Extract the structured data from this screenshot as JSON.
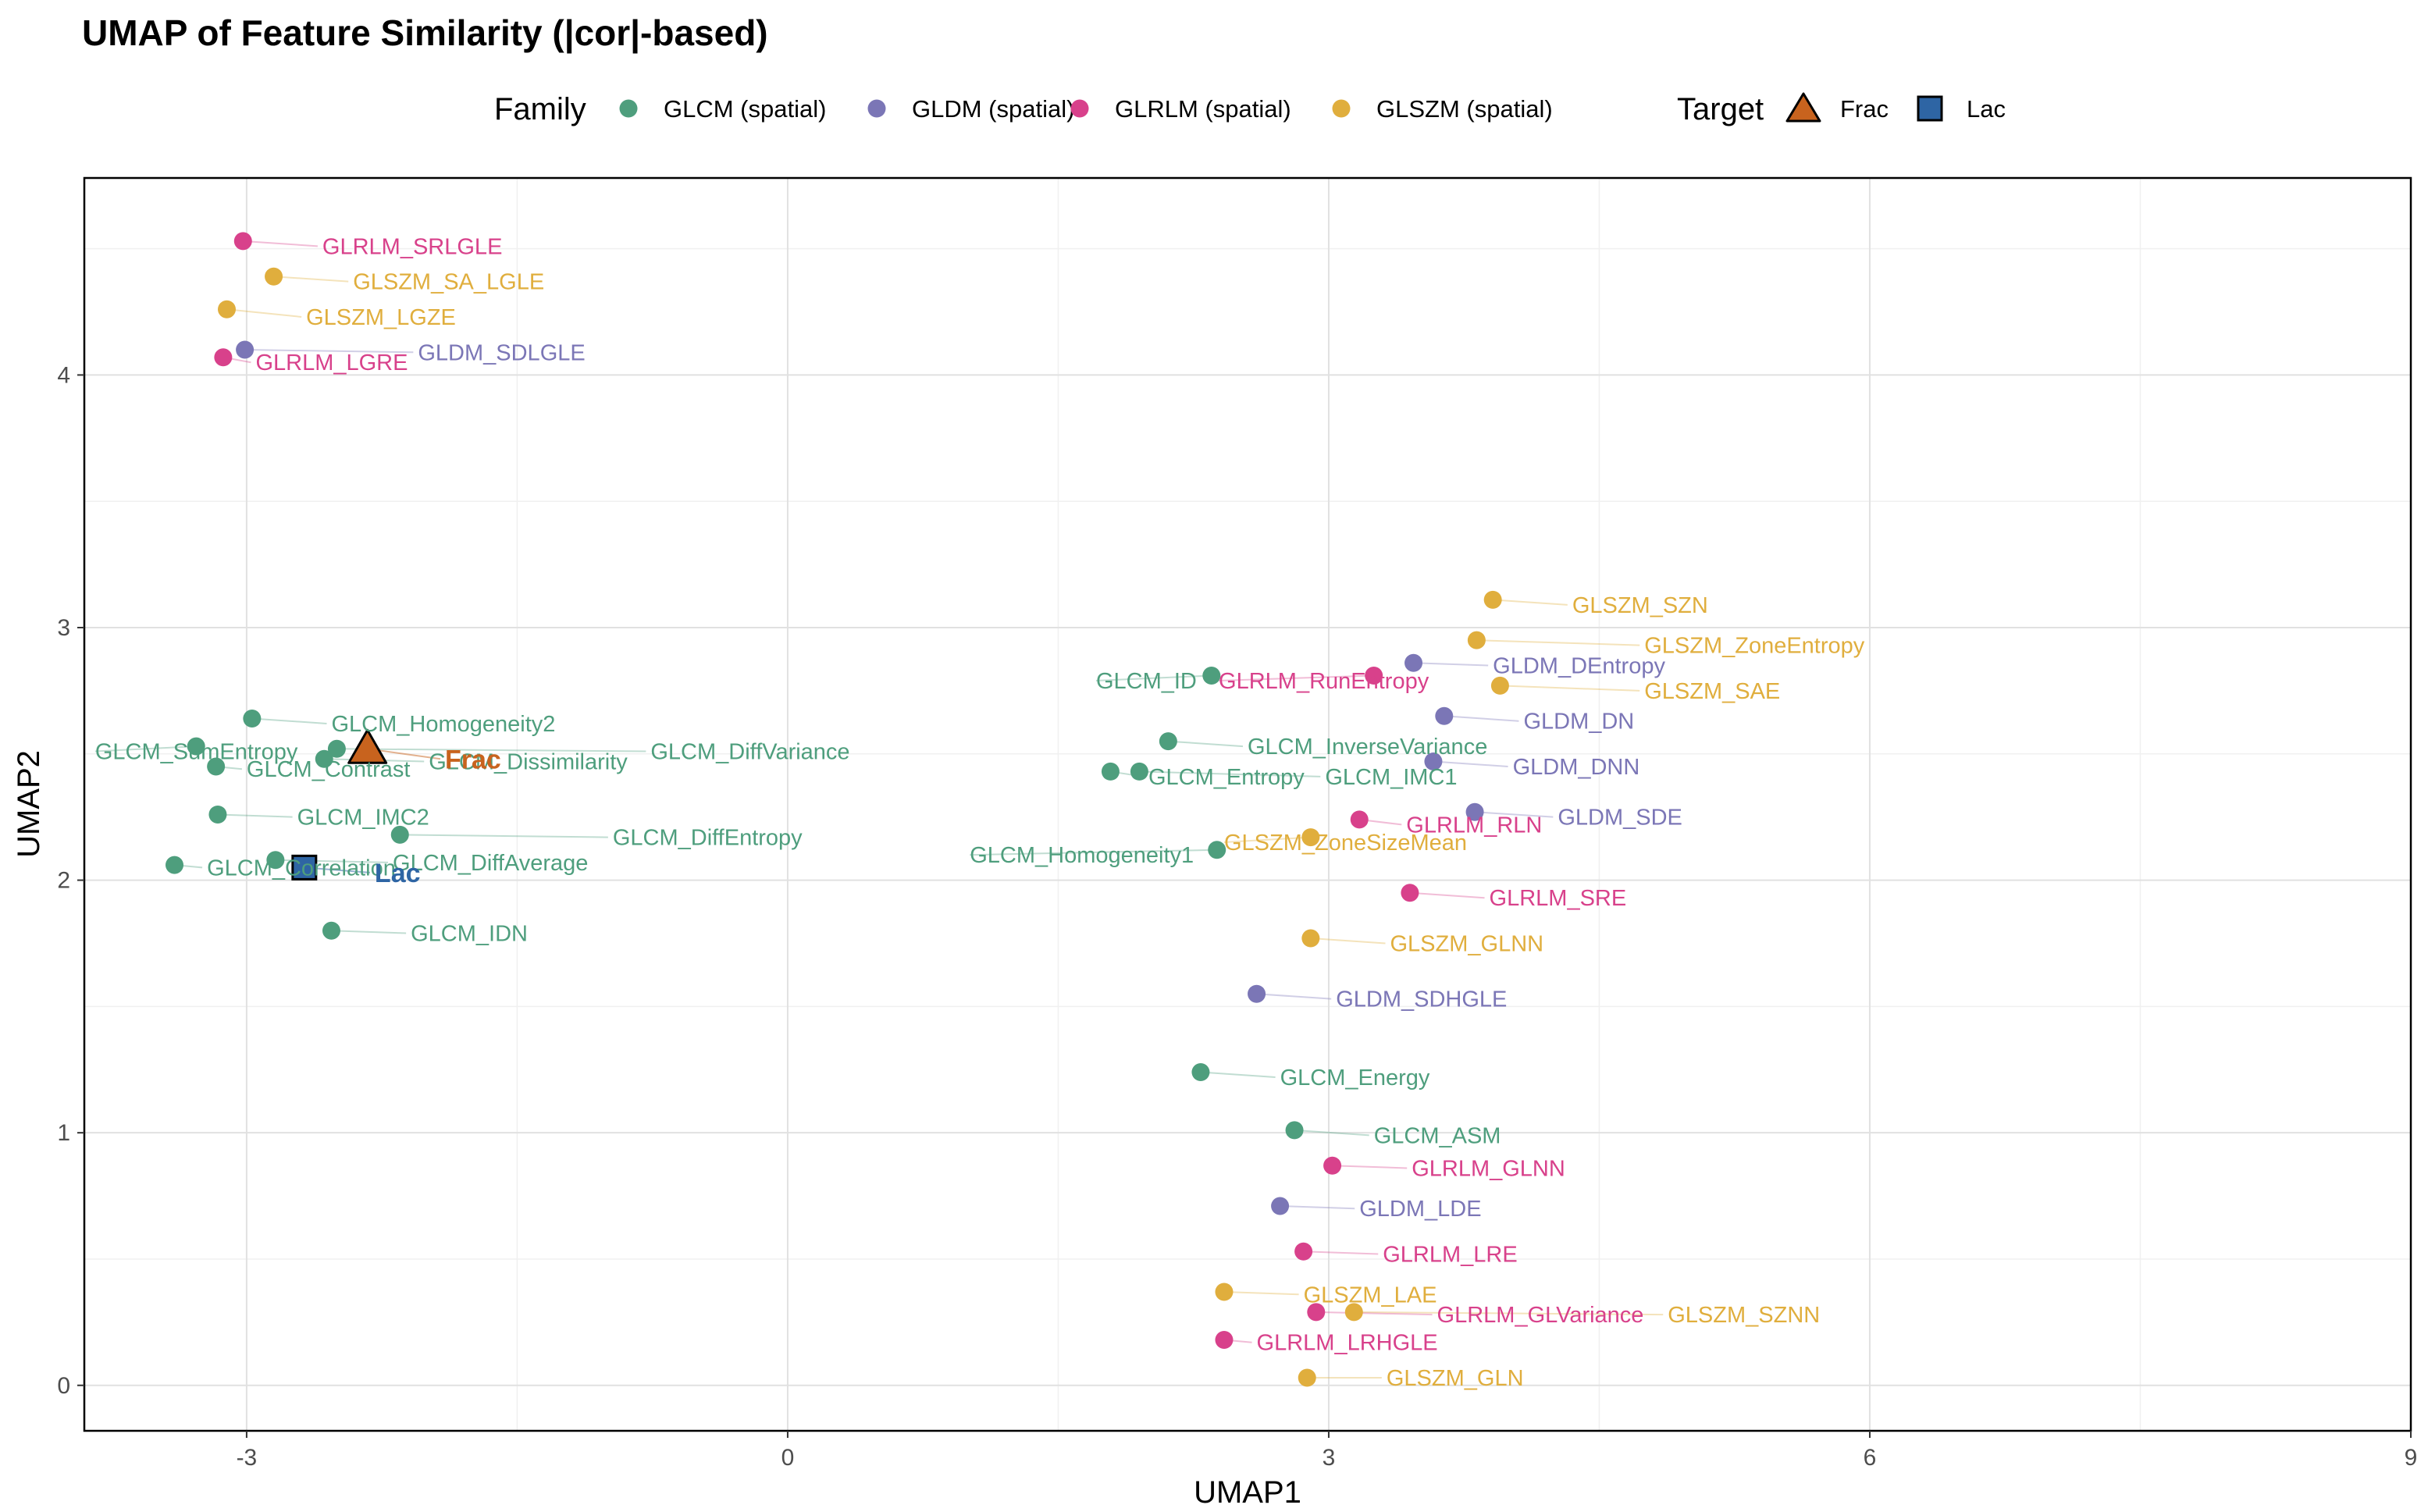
{
  "chart_data": {
    "type": "scatter",
    "title": "UMAP of Feature Similarity (|cor|-based)",
    "xlabel": "UMAP1",
    "ylabel": "UMAP2",
    "xlim": [
      -3.9,
      9.0
    ],
    "ylim": [
      -0.18,
      4.78
    ],
    "xticks": [
      -3,
      0,
      3,
      6,
      9
    ],
    "yticks": [
      0,
      1,
      2,
      3,
      4
    ],
    "grid": true,
    "legend_position": "top",
    "legend": {
      "family_title": "Family",
      "target_title": "Target",
      "families": [
        {
          "key": "GLCM",
          "label": "GLCM (spatial)",
          "color": "#4e9e7d"
        },
        {
          "key": "GLDM",
          "label": "GLDM (spatial)",
          "color": "#7b76b6"
        },
        {
          "key": "GLRLM",
          "label": "GLRLM (spatial)",
          "color": "#d8418b"
        },
        {
          "key": "GLSZM",
          "label": "GLSZM (spatial)",
          "color": "#e0ae3d"
        }
      ],
      "targets": [
        {
          "label": "Frac",
          "shape": "triangle",
          "color": "#c8631e"
        },
        {
          "label": "Lac",
          "shape": "square",
          "color": "#2e65a4"
        }
      ]
    },
    "targets": [
      {
        "label": "Frac",
        "x": -2.33,
        "y": 2.52,
        "lx": -1.9,
        "ly": 2.48,
        "color": "#c8631e",
        "shape": "triangle"
      },
      {
        "label": "Lac",
        "x": -2.68,
        "y": 2.05,
        "lx": -2.29,
        "ly": 2.03,
        "color": "#2e65a4",
        "shape": "square"
      }
    ],
    "points": [
      {
        "label": "GLRLM_SRLGLE",
        "family": "GLRLM",
        "x": -3.02,
        "y": 4.53,
        "lx": -2.58,
        "ly": 4.51
      },
      {
        "label": "GLSZM_SA_LGLE",
        "family": "GLSZM",
        "x": -2.85,
        "y": 4.39,
        "lx": -2.41,
        "ly": 4.37
      },
      {
        "label": "GLSZM_LGZE",
        "family": "GLSZM",
        "x": -3.11,
        "y": 4.26,
        "lx": -2.67,
        "ly": 4.23
      },
      {
        "label": "GLDM_SDLGLE",
        "family": "GLDM",
        "x": -3.01,
        "y": 4.1,
        "lx": -2.05,
        "ly": 4.09
      },
      {
        "label": "GLRLM_LGRE",
        "family": "GLRLM",
        "x": -3.13,
        "y": 4.07,
        "lx": -2.95,
        "ly": 4.05
      },
      {
        "label": "GLCM_Homogeneity2",
        "family": "GLCM",
        "x": -2.97,
        "y": 2.64,
        "lx": -2.53,
        "ly": 2.62
      },
      {
        "label": "GLCM_SumEntropy",
        "family": "GLCM",
        "x": -3.28,
        "y": 2.53,
        "lx": -3.84,
        "ly": 2.51
      },
      {
        "label": "GLCM_DiffVariance",
        "family": "GLCM",
        "x": -2.5,
        "y": 2.52,
        "lx": -0.76,
        "ly": 2.51
      },
      {
        "label": "GLCM_Dissimilarity",
        "family": "GLCM",
        "x": -2.57,
        "y": 2.48,
        "lx": -1.99,
        "ly": 2.47
      },
      {
        "label": "GLCM_Contrast",
        "family": "GLCM",
        "x": -3.17,
        "y": 2.45,
        "lx": -3.0,
        "ly": 2.44
      },
      {
        "label": "GLCM_IMC2",
        "family": "GLCM",
        "x": -3.16,
        "y": 2.26,
        "lx": -2.72,
        "ly": 2.25
      },
      {
        "label": "GLCM_DiffEntropy",
        "family": "GLCM",
        "x": -2.15,
        "y": 2.18,
        "lx": -0.97,
        "ly": 2.17
      },
      {
        "label": "GLCM_DiffAverage",
        "family": "GLCM",
        "x": -2.84,
        "y": 2.08,
        "lx": -2.19,
        "ly": 2.07
      },
      {
        "label": "GLCM_Correlation",
        "family": "GLCM",
        "x": -3.4,
        "y": 2.06,
        "lx": -3.22,
        "ly": 2.05
      },
      {
        "label": "GLCM_IDN",
        "family": "GLCM",
        "x": -2.53,
        "y": 1.8,
        "lx": -2.09,
        "ly": 1.79
      },
      {
        "label": "GLSZM_SZN",
        "family": "GLSZM",
        "x": 3.91,
        "y": 3.11,
        "lx": 4.35,
        "ly": 3.09
      },
      {
        "label": "GLSZM_ZoneEntropy",
        "family": "GLSZM",
        "x": 3.82,
        "y": 2.95,
        "lx": 4.75,
        "ly": 2.93
      },
      {
        "label": "GLDM_DEntropy",
        "family": "GLDM",
        "x": 3.47,
        "y": 2.86,
        "lx": 3.91,
        "ly": 2.85
      },
      {
        "label": "GLRLM_RunEntropy",
        "family": "GLRLM",
        "x": 3.25,
        "y": 2.81,
        "lx": 2.39,
        "ly": 2.79
      },
      {
        "label": "GLCM_ID",
        "family": "GLCM",
        "x": 2.35,
        "y": 2.81,
        "lx": 1.71,
        "ly": 2.79
      },
      {
        "label": "GLSZM_SAE",
        "family": "GLSZM",
        "x": 3.95,
        "y": 2.77,
        "lx": 4.75,
        "ly": 2.75
      },
      {
        "label": "GLDM_DN",
        "family": "GLDM",
        "x": 3.64,
        "y": 2.65,
        "lx": 4.08,
        "ly": 2.63
      },
      {
        "label": "GLCM_InverseVariance",
        "family": "GLCM",
        "x": 2.11,
        "y": 2.55,
        "lx": 2.55,
        "ly": 2.53
      },
      {
        "label": "GLDM_DNN",
        "family": "GLDM",
        "x": 3.58,
        "y": 2.47,
        "lx": 4.02,
        "ly": 2.45
      },
      {
        "label": "GLCM_IMC1",
        "family": "GLCM",
        "x": 1.95,
        "y": 2.43,
        "lx": 2.98,
        "ly": 2.41
      },
      {
        "label": "GLCM_Entropy",
        "family": "GLCM",
        "x": 1.79,
        "y": 2.43,
        "lx": 2.0,
        "ly": 2.41
      },
      {
        "label": "GLDM_SDE",
        "family": "GLDM",
        "x": 3.81,
        "y": 2.27,
        "lx": 4.27,
        "ly": 2.25
      },
      {
        "label": "GLRLM_RLN",
        "family": "GLRLM",
        "x": 3.17,
        "y": 2.24,
        "lx": 3.43,
        "ly": 2.22
      },
      {
        "label": "GLSZM_ZoneSizeMean",
        "family": "GLSZM",
        "x": 2.9,
        "y": 2.17,
        "lx": 2.42,
        "ly": 2.15
      },
      {
        "label": "GLCM_Homogeneity1",
        "family": "GLCM",
        "x": 2.38,
        "y": 2.12,
        "lx": 1.01,
        "ly": 2.1
      },
      {
        "label": "GLRLM_SRE",
        "family": "GLRLM",
        "x": 3.45,
        "y": 1.95,
        "lx": 3.89,
        "ly": 1.93
      },
      {
        "label": "GLSZM_GLNN",
        "family": "GLSZM",
        "x": 2.9,
        "y": 1.77,
        "lx": 3.34,
        "ly": 1.75
      },
      {
        "label": "GLDM_SDHGLE",
        "family": "GLDM",
        "x": 2.6,
        "y": 1.55,
        "lx": 3.04,
        "ly": 1.53
      },
      {
        "label": "GLCM_Energy",
        "family": "GLCM",
        "x": 2.29,
        "y": 1.24,
        "lx": 2.73,
        "ly": 1.22
      },
      {
        "label": "GLCM_ASM",
        "family": "GLCM",
        "x": 2.81,
        "y": 1.01,
        "lx": 3.25,
        "ly": 0.99
      },
      {
        "label": "GLRLM_GLNN",
        "family": "GLRLM",
        "x": 3.02,
        "y": 0.87,
        "lx": 3.46,
        "ly": 0.86
      },
      {
        "label": "GLDM_LDE",
        "family": "GLDM",
        "x": 2.73,
        "y": 0.71,
        "lx": 3.17,
        "ly": 0.7
      },
      {
        "label": "GLRLM_LRE",
        "family": "GLRLM",
        "x": 2.86,
        "y": 0.53,
        "lx": 3.3,
        "ly": 0.52
      },
      {
        "label": "GLSZM_LAE",
        "family": "GLSZM",
        "x": 2.42,
        "y": 0.37,
        "lx": 2.86,
        "ly": 0.36
      },
      {
        "label": "GLSZM_SZNN",
        "family": "GLSZM",
        "x": 3.14,
        "y": 0.29,
        "lx": 4.88,
        "ly": 0.28
      },
      {
        "label": "GLRLM_GLVariance",
        "family": "GLRLM",
        "x": 2.93,
        "y": 0.29,
        "lx": 3.6,
        "ly": 0.28
      },
      {
        "label": "GLRLM_LRHGLE",
        "family": "GLRLM",
        "x": 2.42,
        "y": 0.18,
        "lx": 2.6,
        "ly": 0.17
      },
      {
        "label": "GLSZM_GLN",
        "family": "GLSZM",
        "x": 2.88,
        "y": 0.03,
        "lx": 3.32,
        "ly": 0.03
      }
    ]
  }
}
